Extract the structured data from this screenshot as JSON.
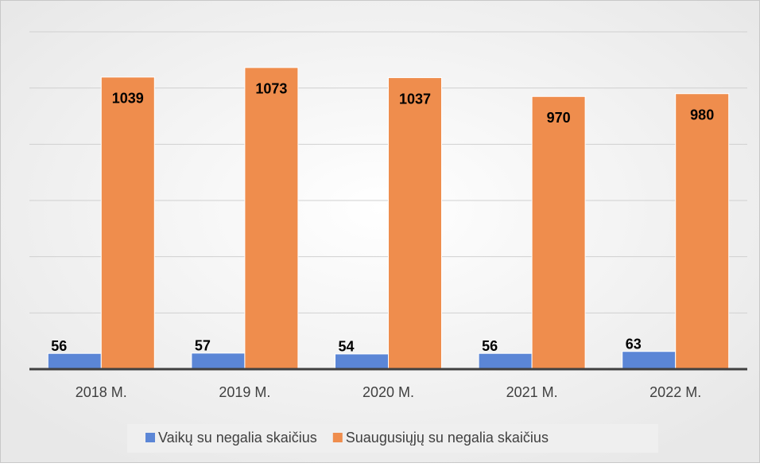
{
  "chart_data": {
    "type": "bar",
    "categories": [
      "2018 M.",
      "2019 M.",
      "2020 M.",
      "2021 M.",
      "2022 M."
    ],
    "series": [
      {
        "name": "Vaikų su negalia skaičius",
        "color": "#5b86d6",
        "values": [
          56,
          57,
          54,
          56,
          63
        ]
      },
      {
        "name": "Suaugusiųjų su negalia skaičius",
        "color": "#ef8d4d",
        "values": [
          1039,
          1073,
          1037,
          970,
          980
        ]
      }
    ],
    "ylim": [
      0,
      1200
    ],
    "yticks": [
      0,
      200,
      400,
      600,
      800,
      1000,
      1200
    ],
    "grid": true,
    "legend": "bottom"
  }
}
